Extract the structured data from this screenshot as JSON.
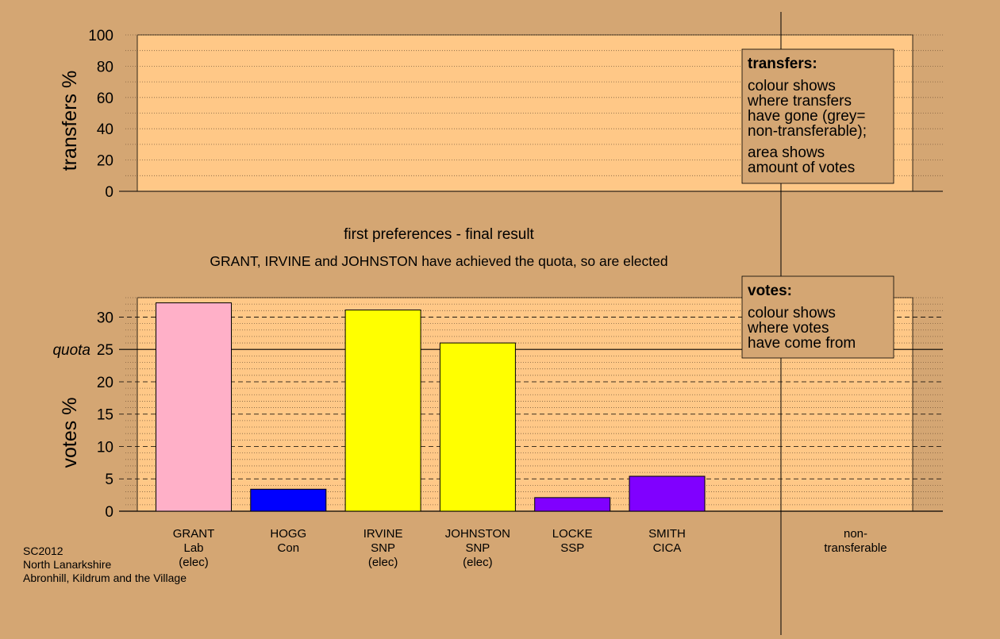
{
  "colors": {
    "background": "#d4a673",
    "panel": "#ffc887",
    "legend_box": "#d4a673",
    "GRANT": "#ffb0c8",
    "HOGG": "#0000ff",
    "IRVINE": "#ffff00",
    "JOHNSTON": "#ffff00",
    "LOCKE": "#8000ff",
    "SMITH": "#8000ff"
  },
  "chart_data": [
    {
      "type": "bar",
      "panel": "transfers",
      "ylabel": "transfers %",
      "ylim": [
        0,
        100
      ],
      "yticks": [
        "0",
        "20",
        "40",
        "60",
        "80",
        "100"
      ],
      "values": [],
      "legend": {
        "title": "transfers:",
        "lines1": [
          "colour shows",
          "where transfers",
          "have gone (grey=",
          "non-transferable);"
        ],
        "lines2": [
          "area shows",
          "amount of votes"
        ]
      }
    },
    {
      "type": "bar",
      "panel": "votes",
      "ylabel": "votes %",
      "ylim": [
        0,
        33
      ],
      "yticks": [
        "0",
        "5",
        "10",
        "15",
        "20",
        "25",
        "30"
      ],
      "quota": {
        "label": "quota",
        "value": 25
      },
      "categories": [
        {
          "name": "GRANT",
          "party": "Lab",
          "status": "(elec)"
        },
        {
          "name": "HOGG",
          "party": "Con",
          "status": ""
        },
        {
          "name": "IRVINE",
          "party": "SNP",
          "status": "(elec)"
        },
        {
          "name": "JOHNSTON",
          "party": "SNP",
          "status": "(elec)"
        },
        {
          "name": "LOCKE",
          "party": "SSP",
          "status": ""
        },
        {
          "name": "SMITH",
          "party": "CICA",
          "status": ""
        }
      ],
      "values": [
        32.2,
        3.4,
        31.1,
        26.0,
        2.1,
        5.4
      ],
      "nontransferable_label": [
        "non-",
        "transferable"
      ],
      "legend": {
        "title": "votes:",
        "lines": [
          "colour shows",
          "where votes",
          "have come from"
        ]
      }
    }
  ],
  "stage_title": "first preferences - final result",
  "stage_note": "GRANT, IRVINE and JOHNSTON have achieved the quota, so are elected",
  "footer": [
    "SC2012",
    "North Lanarkshire",
    "Abronhill, Kildrum and the Village"
  ]
}
